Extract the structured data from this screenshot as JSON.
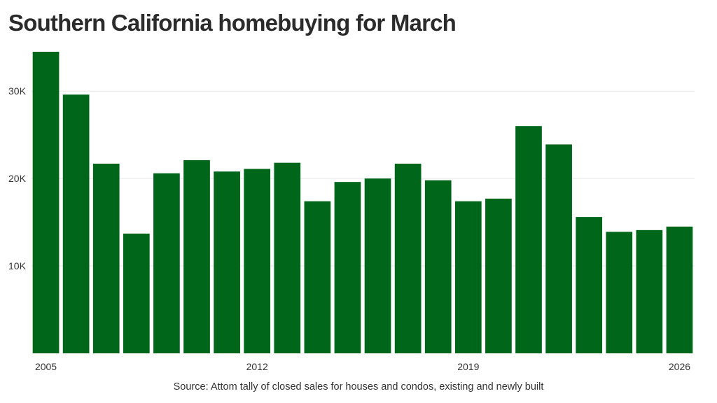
{
  "title": "Southern California homebuying for March",
  "source": "Source: Attom tally of closed sales for houses and condos, existing and newly built",
  "colors": {
    "bar": "#00661a",
    "grid": "#e6e6e6",
    "text": "#333333"
  },
  "chart_data": {
    "type": "bar",
    "title": "Southern California homebuying for March",
    "xlabel": "",
    "ylabel": "",
    "categories": [
      "2005",
      "2006",
      "2007",
      "2008",
      "2009",
      "2010",
      "2011",
      "2012",
      "2013",
      "2014",
      "2015",
      "2016",
      "2017",
      "2018",
      "2019",
      "2020",
      "2021",
      "2022",
      "2023",
      "2024",
      "2025",
      "2026"
    ],
    "x_tick_labels": [
      "2005",
      "2012",
      "2019",
      "2026"
    ],
    "values": [
      34500,
      29600,
      21700,
      13700,
      20600,
      22100,
      20800,
      21100,
      21800,
      17400,
      19600,
      20000,
      21700,
      19800,
      17400,
      17700,
      26000,
      23900,
      15600,
      13900,
      14100,
      14500
    ],
    "ylim": [
      0,
      34500
    ],
    "y_ticks": [
      10000,
      20000,
      30000
    ],
    "y_tick_labels": [
      "10K",
      "20K",
      "30K"
    ],
    "grid": true,
    "legend": "none"
  }
}
